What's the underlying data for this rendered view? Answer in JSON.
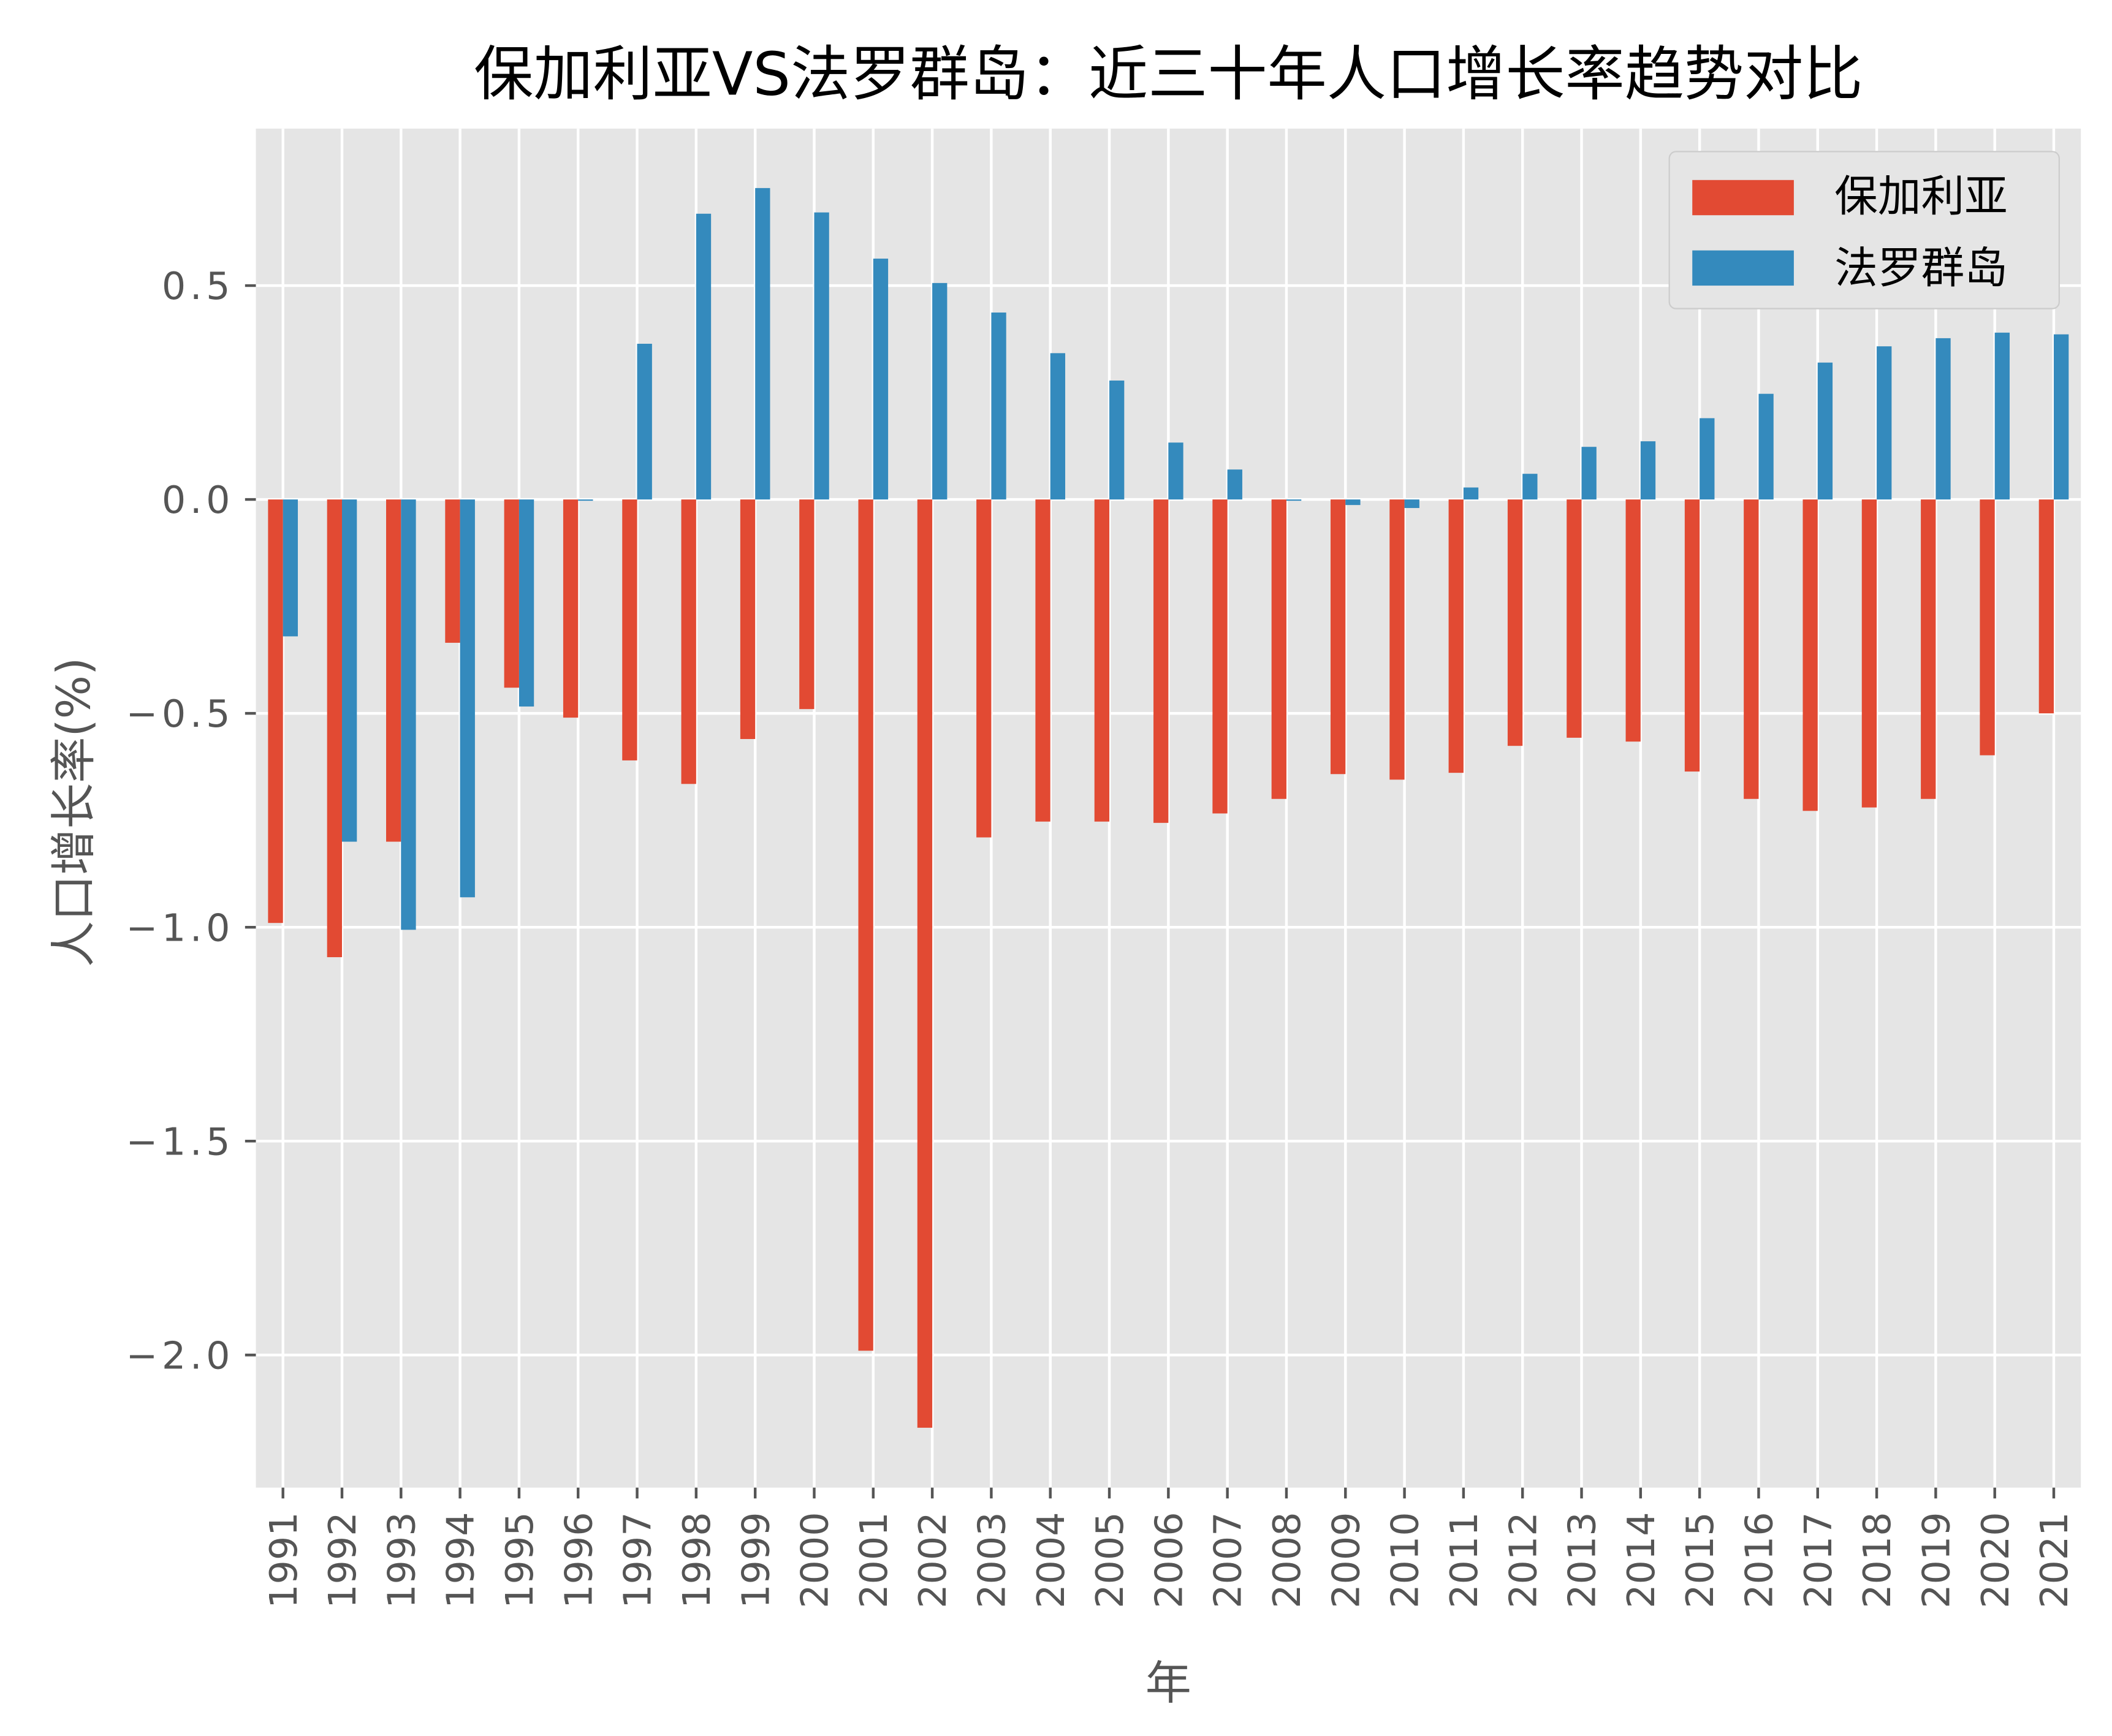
{
  "chart_data": {
    "type": "bar",
    "title": "保加利亚VS法罗群岛：近三十年人口增长率趋势对比",
    "xlabel": "年",
    "ylabel": "人口增长率(%)",
    "ylim": [
      -2.31,
      0.867
    ],
    "yticks": [
      0.5,
      0.0,
      -0.5,
      -1.0,
      -1.5,
      -2.0
    ],
    "ytick_labels": [
      "0.5",
      "0.0",
      "−0.5",
      "−1.0",
      "−1.5",
      "−2.0"
    ],
    "grid": true,
    "legend_position": "top-right",
    "background": "#E5E5E5",
    "categories": [
      "1991",
      "1992",
      "1993",
      "1994",
      "1995",
      "1996",
      "1997",
      "1998",
      "1999",
      "2000",
      "2001",
      "2002",
      "2003",
      "2004",
      "2005",
      "2006",
      "2007",
      "2008",
      "2009",
      "2010",
      "2011",
      "2012",
      "2013",
      "2014",
      "2015",
      "2016",
      "2017",
      "2018",
      "2019",
      "2020",
      "2021"
    ],
    "series": [
      {
        "name": "保加利亚",
        "color": "#E24A33",
        "values": [
          -0.99,
          -1.07,
          -0.8,
          -0.335,
          -0.44,
          -0.51,
          -0.61,
          -0.665,
          -0.56,
          -0.49,
          -1.99,
          -2.17,
          -0.79,
          -0.753,
          -0.753,
          -0.756,
          -0.734,
          -0.7,
          -0.642,
          -0.655,
          -0.639,
          -0.576,
          -0.557,
          -0.566,
          -0.636,
          -0.7,
          -0.728,
          -0.72,
          -0.7,
          -0.598,
          -0.5
        ]
      },
      {
        "name": "法罗群岛",
        "color": "#348ABD",
        "values": [
          -0.32,
          -0.8,
          -1.006,
          -0.93,
          -0.484,
          -0.003,
          0.364,
          0.668,
          0.728,
          0.671,
          0.563,
          0.506,
          0.437,
          0.342,
          0.278,
          0.133,
          0.07,
          -0.003,
          -0.013,
          -0.02,
          0.028,
          0.06,
          0.123,
          0.136,
          0.19,
          0.247,
          0.32,
          0.358,
          0.377,
          0.39,
          0.386
        ]
      }
    ]
  }
}
